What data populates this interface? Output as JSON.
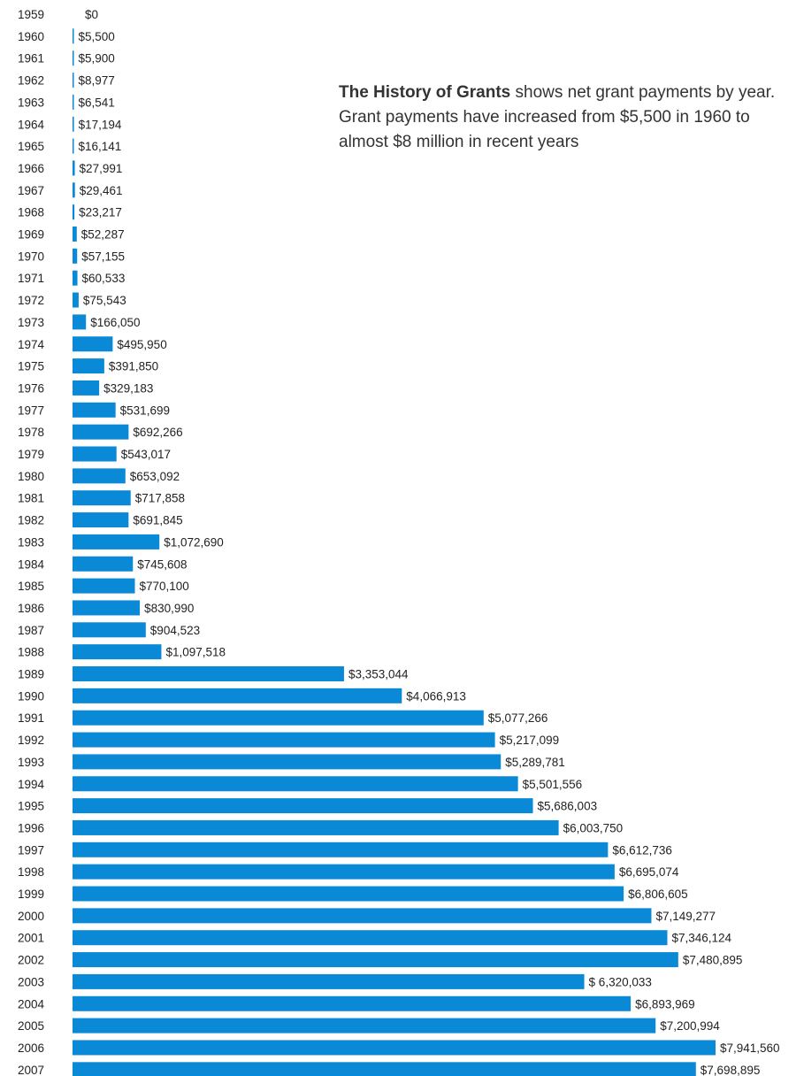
{
  "caption": {
    "title": "The History of Grants",
    "body": " shows net grant payments by year. Grant payments have increased from $5,500 in 1960 to almost $8 million in recent years"
  },
  "colors": {
    "bar": "#0a8ad6",
    "text": "#222222"
  },
  "chart_data": {
    "type": "bar",
    "orientation": "horizontal",
    "title": "",
    "xlabel": "",
    "ylabel": "",
    "xlim": [
      0,
      8000000
    ],
    "grid": false,
    "legend": "none",
    "categories": [
      "1959",
      "1960",
      "1961",
      "1962",
      "1963",
      "1964",
      "1965",
      "1966",
      "1967",
      "1968",
      "1969",
      "1970",
      "1971",
      "1972",
      "1973",
      "1974",
      "1975",
      "1976",
      "1977",
      "1978",
      "1979",
      "1980",
      "1981",
      "1982",
      "1983",
      "1984",
      "1985",
      "1986",
      "1987",
      "1988",
      "1989",
      "1990",
      "1991",
      "1992",
      "1993",
      "1994",
      "1995",
      "1996",
      "1997",
      "1998",
      "1999",
      "2000",
      "2001",
      "2002",
      "2003",
      "2004",
      "2005",
      "2006",
      "2007"
    ],
    "values": [
      0,
      5500,
      5900,
      8977,
      6541,
      17194,
      16141,
      27991,
      29461,
      23217,
      52287,
      57155,
      60533,
      75543,
      166050,
      495950,
      391850,
      329183,
      531699,
      692266,
      543017,
      653092,
      717858,
      691845,
      1072690,
      745608,
      770100,
      830990,
      904523,
      1097518,
      3353044,
      4066913,
      5077266,
      5217099,
      5289781,
      5501556,
      5686003,
      6003750,
      6612736,
      6695074,
      6806605,
      7149277,
      7346124,
      7480895,
      6320033,
      6893969,
      7200994,
      7941560,
      7698895
    ],
    "value_labels": [
      "$0",
      "$5,500",
      "$5,900",
      "$8,977",
      "$6,541",
      "$17,194",
      "$16,141",
      "$27,991",
      "$29,461",
      "$23,217",
      "$52,287",
      "$57,155",
      "$60,533",
      "$75,543",
      "$166,050",
      "$495,950",
      "$391,850",
      "$329,183",
      "$531,699",
      "$692,266",
      "$543,017",
      "$653,092",
      "$717,858",
      "$691,845",
      "$1,072,690",
      "$745,608",
      "$770,100",
      "$830,990",
      "$904,523",
      "$1,097,518",
      "$3,353,044",
      "$4,066,913",
      "$5,077,266",
      "$5,217,099",
      "$5,289,781",
      "$5,501,556",
      "$5,686,003",
      "$6,003,750",
      "$6,612,736",
      "$6,695,074",
      "$6,806,605",
      "$7,149,277",
      "$7,346,124",
      "$7,480,895",
      "$ 6,320,033",
      "$6,893,969",
      "$7,200,994",
      "$7,941,560",
      "$7,698,895"
    ]
  }
}
